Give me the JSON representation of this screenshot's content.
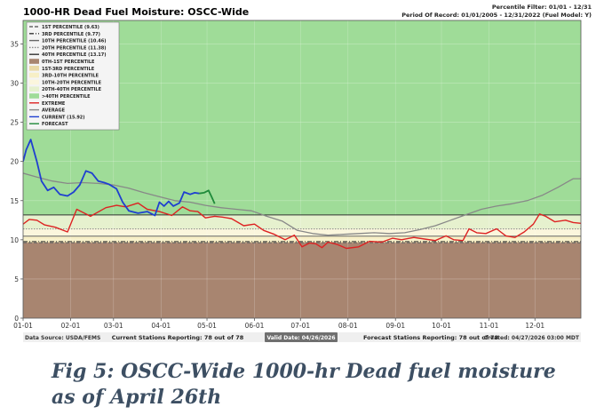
{
  "header": {
    "title": "1000-HR Dead Fuel Moisture: OSCC-Wide",
    "filter": "Percentile Filter: 01/01 - 12/31",
    "period": "Period Of Record: 01/01/2005 - 12/31/2022 (Fuel Model: Y)"
  },
  "footer": {
    "source": "Data Source: USDA/FEMS",
    "current_stations": "Current Stations Reporting: 78 out of 78",
    "valid_date": "Valid Date: 04/26/2026",
    "forecast_stations": "Forecast Stations Reporting: 78 out of 78",
    "created": "Created: 04/27/2026 03:00 MDT"
  },
  "caption": {
    "line1": "Fig 5: OSCC-Wide 1000-hr Dead fuel moisture",
    "line2": "as of April 26th"
  },
  "legend": {
    "items": [
      {
        "label": "1ST PERCENTILE (9.63)",
        "kind": "line",
        "color": "#666666",
        "dash": "dash"
      },
      {
        "label": "3RD PERCENTILE (9.77)",
        "kind": "line",
        "color": "#333333",
        "dash": "dashdot"
      },
      {
        "label": "10TH PERCENTILE (10.46)",
        "kind": "line",
        "color": "#666666",
        "dash": "solid"
      },
      {
        "label": "20TH PERCENTILE (11.38)",
        "kind": "line",
        "color": "#888888",
        "dash": "dot"
      },
      {
        "label": "40TH PERCENTILE (13.17)",
        "kind": "line",
        "color": "#333333",
        "dash": "solid"
      },
      {
        "label": "0TH-1ST PERCENTILE",
        "kind": "box",
        "color": "#a88570"
      },
      {
        "label": "1ST-3RD PERCENTILE",
        "kind": "box",
        "color": "#ead9a6"
      },
      {
        "label": "3RD-10TH PERCENTILE",
        "kind": "box",
        "color": "#f7efc6"
      },
      {
        "label": "10TH-20TH PERCENTILE",
        "kind": "box",
        "color": "#fbf6dd"
      },
      {
        "label": "20TH-40TH PERCENTILE",
        "kind": "box",
        "color": "#e6f1ce"
      },
      {
        "label": ">40TH PERCENTILE",
        "kind": "box",
        "color": "#9fdc98"
      },
      {
        "label": "EXTREME",
        "kind": "line",
        "color": "#dd2222",
        "dash": "solid"
      },
      {
        "label": "AVERAGE",
        "kind": "line",
        "color": "#888888",
        "dash": "solid"
      },
      {
        "label": "CURRENT (15.92)",
        "kind": "line",
        "color": "#1f3fd0",
        "dash": "solid"
      },
      {
        "label": "FORECAST",
        "kind": "line",
        "color": "#1f8a3a",
        "dash": "solid"
      }
    ]
  },
  "colors": {
    "bg_above40": "#9fdc98",
    "bg_20_40": "#e6f1ce",
    "bg_10_20": "#fbf6dd",
    "bg_3_10": "#f7efc6",
    "bg_1_3": "#ead9a6",
    "bg_0_1": "#a88570",
    "extreme": "#dd2222",
    "average": "#888888",
    "current": "#1f3fd0",
    "forecast": "#1f8a3a",
    "caption": "#3d4f63"
  },
  "chart_data": {
    "type": "line",
    "title": "1000-HR Dead Fuel Moisture: OSCC-Wide",
    "xlabel": "",
    "ylabel": "",
    "x_range": [
      "01-01",
      "12-31"
    ],
    "ylim": [
      0,
      38
    ],
    "yticks": [
      0,
      5,
      10,
      15,
      20,
      25,
      30,
      35
    ],
    "xticks": [
      "01-01",
      "02-01",
      "03-01",
      "04-01",
      "05-01",
      "06-01",
      "07-01",
      "08-01",
      "09-01",
      "10-01",
      "11-01",
      "12-01"
    ],
    "percentiles": {
      "p1": 9.63,
      "p3": 9.77,
      "p10": 10.46,
      "p20": 11.38,
      "p40": 13.17
    },
    "series": [
      {
        "name": "EXTREME",
        "x": [
          1,
          5,
          10,
          15,
          22,
          30,
          36,
          45,
          55,
          62,
          68,
          76,
          82,
          90,
          98,
          105,
          110,
          115,
          120,
          126,
          131,
          137,
          145,
          152,
          158,
          165,
          172,
          178,
          183,
          188,
          192,
          196,
          200,
          206,
          212,
          220,
          227,
          235,
          242,
          248,
          256,
          263,
          270,
          277,
          282,
          288,
          292,
          297,
          303,
          310,
          316,
          322,
          328,
          334,
          338,
          342,
          348,
          355,
          360,
          365
        ],
        "y": [
          12.0,
          12.6,
          12.5,
          11.9,
          11.6,
          11.0,
          13.9,
          13.0,
          14.1,
          14.4,
          14.2,
          14.7,
          13.9,
          13.6,
          13.1,
          14.2,
          13.7,
          13.6,
          12.8,
          13.0,
          12.9,
          12.7,
          11.8,
          12.0,
          11.2,
          10.7,
          10.0,
          10.6,
          9.1,
          9.6,
          9.5,
          9.0,
          9.7,
          9.4,
          8.9,
          9.1,
          9.8,
          9.7,
          10.2,
          10.0,
          10.3,
          10.1,
          9.9,
          10.5,
          10.0,
          9.9,
          11.4,
          10.9,
          10.8,
          11.4,
          10.5,
          10.3,
          11.0,
          12.0,
          13.3,
          13.0,
          12.3,
          12.5,
          12.2,
          12.1
        ]
      },
      {
        "name": "AVERAGE",
        "x": [
          1,
          10,
          20,
          30,
          40,
          50,
          60,
          70,
          80,
          90,
          100,
          110,
          120,
          130,
          140,
          150,
          160,
          170,
          180,
          190,
          200,
          210,
          220,
          230,
          240,
          250,
          260,
          270,
          280,
          290,
          300,
          310,
          320,
          330,
          340,
          350,
          360,
          365
        ],
        "y": [
          18.5,
          18.0,
          17.5,
          17.2,
          17.3,
          17.2,
          17.0,
          16.6,
          16.0,
          15.5,
          15.0,
          14.8,
          14.4,
          14.1,
          13.9,
          13.7,
          13.0,
          12.4,
          11.2,
          10.8,
          10.6,
          10.7,
          10.8,
          10.9,
          10.8,
          10.9,
          11.3,
          11.8,
          12.5,
          13.2,
          13.9,
          14.3,
          14.6,
          15.0,
          15.7,
          16.7,
          17.8,
          17.8
        ]
      },
      {
        "name": "CURRENT (15.92)",
        "x": [
          1,
          3,
          6,
          10,
          13,
          17,
          21,
          25,
          30,
          34,
          38,
          42,
          46,
          50,
          54,
          57,
          62,
          66,
          70,
          76,
          82,
          87,
          90,
          93,
          96,
          99,
          103,
          106,
          110,
          113,
          116
        ],
        "y": [
          20.0,
          21.5,
          22.8,
          20.0,
          17.5,
          16.3,
          16.7,
          15.8,
          15.6,
          16.1,
          17.0,
          18.8,
          18.5,
          17.5,
          17.3,
          17.1,
          16.5,
          14.8,
          13.7,
          13.4,
          13.6,
          13.1,
          14.8,
          14.3,
          14.9,
          14.3,
          14.7,
          16.1,
          15.8,
          16.0,
          15.92
        ]
      },
      {
        "name": "FORECAST",
        "x": [
          116,
          119,
          122,
          124,
          126
        ],
        "y": [
          15.92,
          16.0,
          16.3,
          15.5,
          14.6
        ]
      }
    ]
  }
}
